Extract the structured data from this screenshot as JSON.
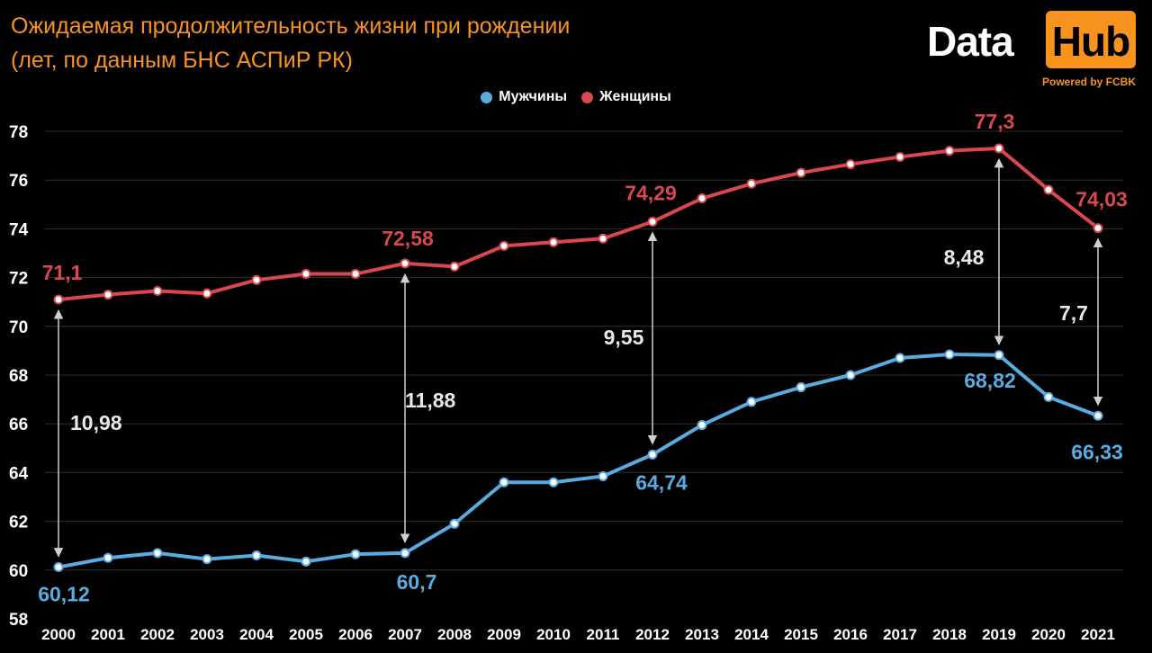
{
  "header": {
    "title_line1": "Ожидаемая продолжительность жизни при рождении",
    "title_line2": "(лет, по данным БНС АСПиР РК)"
  },
  "logo": {
    "data_text": "Data",
    "hub_text": "Hub",
    "powered_text": "Powered by FCBK"
  },
  "colors": {
    "men": "#5aabe0",
    "women": "#d9474f",
    "accent": "#f7931e",
    "grid": "#2e2e2e",
    "text": "#ffffff"
  },
  "chart_data": {
    "type": "line",
    "title": "Ожидаемая продолжительность жизни при рождении",
    "subtitle": "(лет, по данным БНС АСПиР РК)",
    "legend_position": "top-center",
    "grid": true,
    "x": [
      "2000",
      "2001",
      "2002",
      "2003",
      "2004",
      "2005",
      "2006",
      "2007",
      "2008",
      "2009",
      "2010",
      "2011",
      "2012",
      "2013",
      "2014",
      "2015",
      "2016",
      "2017",
      "2018",
      "2019",
      "2020",
      "2021"
    ],
    "ylim": [
      58,
      78
    ],
    "yticks": [
      "58",
      "60",
      "62",
      "64",
      "66",
      "68",
      "70",
      "72",
      "74",
      "76",
      "78"
    ],
    "series": [
      {
        "name": "Мужчины",
        "key": "men",
        "values": [
          60.12,
          60.5,
          60.7,
          60.45,
          60.6,
          60.35,
          60.65,
          60.7,
          61.9,
          63.6,
          63.6,
          63.85,
          64.74,
          65.95,
          66.9,
          67.5,
          68.0,
          68.7,
          68.85,
          68.82,
          67.1,
          66.33
        ]
      },
      {
        "name": "Женщины",
        "key": "women",
        "values": [
          71.1,
          71.3,
          71.45,
          71.35,
          71.9,
          72.15,
          72.15,
          72.58,
          72.45,
          73.3,
          73.45,
          73.6,
          74.29,
          75.25,
          75.85,
          76.3,
          76.65,
          76.95,
          77.2,
          77.3,
          75.6,
          74.03
        ]
      }
    ],
    "point_labels": [
      {
        "series": "men",
        "index": 0,
        "text": "60,12"
      },
      {
        "series": "men",
        "index": 7,
        "text": "60,7"
      },
      {
        "series": "men",
        "index": 12,
        "text": "64,74"
      },
      {
        "series": "men",
        "index": 19,
        "text": "68,82"
      },
      {
        "series": "men",
        "index": 21,
        "text": "66,33"
      },
      {
        "series": "women",
        "index": 0,
        "text": "71,1"
      },
      {
        "series": "women",
        "index": 7,
        "text": "72,58"
      },
      {
        "series": "women",
        "index": 12,
        "text": "74,29"
      },
      {
        "series": "women",
        "index": 19,
        "text": "77,3"
      },
      {
        "series": "women",
        "index": 21,
        "text": "74,03"
      }
    ],
    "gap_annotations": [
      {
        "index": 0,
        "text": "10,98"
      },
      {
        "index": 7,
        "text": "11,88"
      },
      {
        "index": 12,
        "text": "9,55"
      },
      {
        "index": 19,
        "text": "8,48"
      },
      {
        "index": 21,
        "text": "7,7"
      }
    ]
  }
}
